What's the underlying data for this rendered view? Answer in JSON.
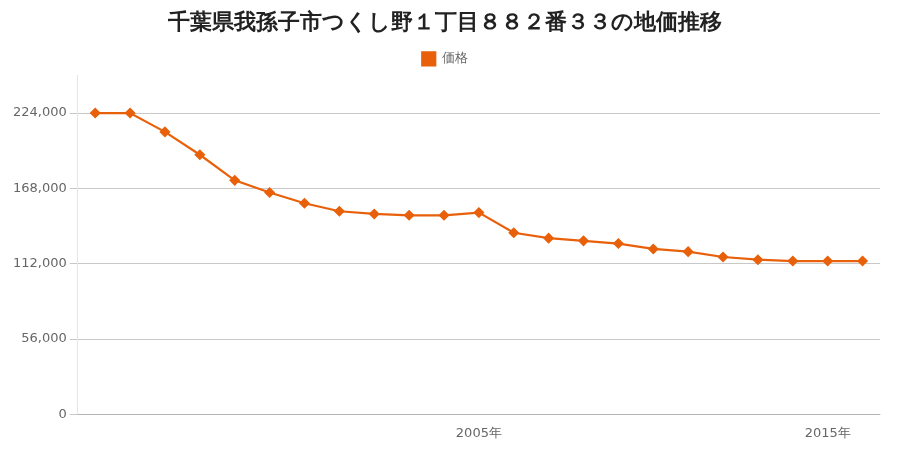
{
  "chart_data": {
    "type": "line",
    "title": "千葉県我孫子市つくし野１丁目８８２番３３の地価推移",
    "x": [
      1994,
      1995,
      1996,
      1997,
      1998,
      1999,
      2000,
      2001,
      2002,
      2003,
      2004,
      2005,
      2006,
      2007,
      2008,
      2009,
      2010,
      2011,
      2012,
      2013,
      2014,
      2015,
      2016
    ],
    "series": [
      {
        "name": "価格",
        "color": "#e8600a",
        "marker": "diamond",
        "values": [
          224000,
          224000,
          210000,
          193000,
          174000,
          165000,
          157000,
          151000,
          149000,
          148000,
          148000,
          150000,
          135000,
          131000,
          129000,
          127000,
          123000,
          121000,
          117000,
          115000,
          114000,
          114000,
          114000
        ]
      }
    ],
    "xlim": [
      1993.5,
      2016.5
    ],
    "xticks": [
      {
        "value": 2005,
        "label": "2005年"
      },
      {
        "value": 2015,
        "label": "2015年"
      }
    ],
    "ylim": [
      0,
      252000
    ],
    "yticks": [
      0,
      {
        "value": 56000,
        "label": "56,000"
      },
      {
        "value": 112000,
        "label": "112,000"
      },
      {
        "value": 168000,
        "label": "168,000"
      },
      {
        "value": 224000,
        "label": "224,000"
      }
    ],
    "grid": "y",
    "legend": "top"
  }
}
